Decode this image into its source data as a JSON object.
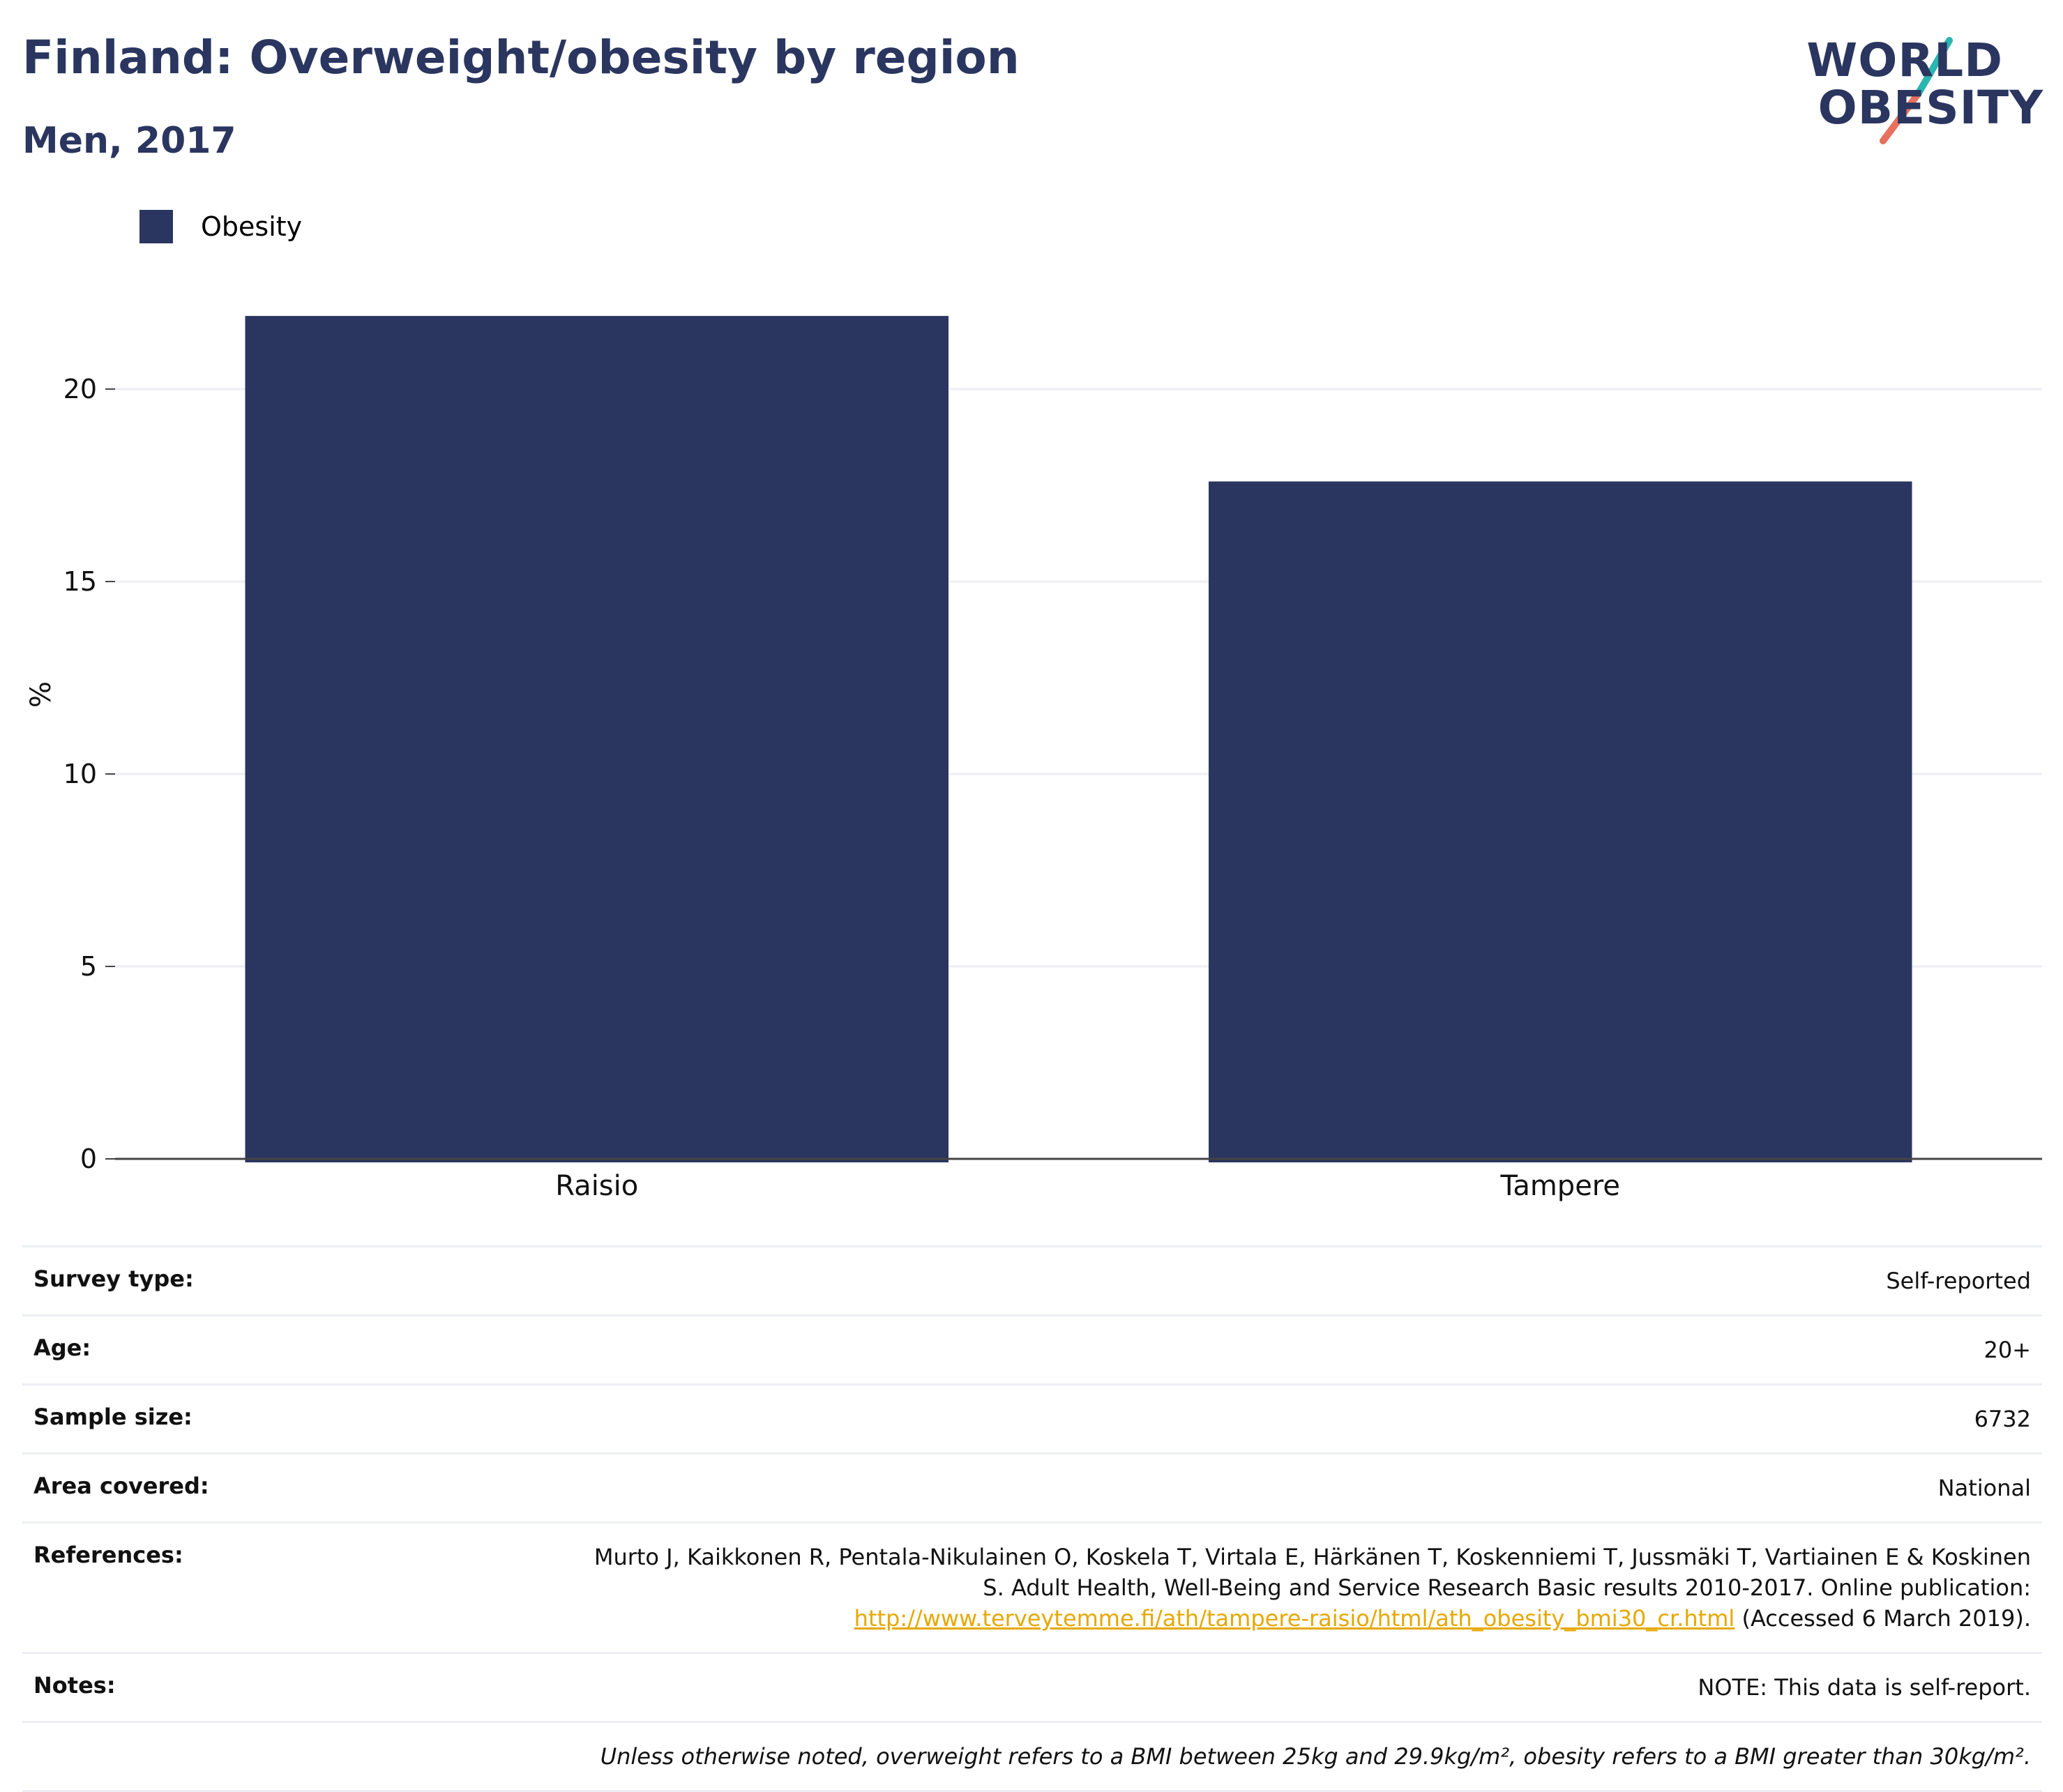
{
  "header": {
    "title": "Finland: Overweight/obesity by region",
    "subtitle": "Men, 2017"
  },
  "logo": {
    "line1": "WORLD",
    "line2": "OBESITY",
    "accent_teal": "#2bb5b0",
    "accent_coral": "#e8705e"
  },
  "colors": {
    "bar": "#2a365f",
    "grid": "#eceef3",
    "axis": "#444444",
    "link": "#e6a800"
  },
  "chart_data": {
    "type": "bar",
    "categories": [
      "Raisio",
      "Tampere"
    ],
    "series": [
      {
        "name": "Obesity",
        "values": [
          21.9,
          17.6
        ]
      }
    ],
    "ylabel": "%",
    "ylim": [
      0,
      22.5
    ],
    "yticks": [
      0,
      5,
      10,
      15,
      20
    ],
    "grid": true,
    "legend_position": "top-left"
  },
  "meta": {
    "survey_type": {
      "label": "Survey type:",
      "value": "Self-reported"
    },
    "age": {
      "label": "Age:",
      "value": "20+"
    },
    "sample_size": {
      "label": "Sample size:",
      "value": "6732"
    },
    "area_covered": {
      "label": "Area covered:",
      "value": "National"
    },
    "references": {
      "label": "References:",
      "text_before": "Murto J, Kaikkonen R, Pentala-Nikulainen O, Koskela T, Virtala E, Härkänen T, Koskenniemi T, Jussmäki T, Vartiainen E & Koskinen S. Adult Health, Well-Being and Service Research Basic results 2010-2017. Online publication: ",
      "link": "http://www.terveytemme.fi/ath/tampere-raisio/html/ath_obesity_bmi30_cr.html",
      "text_after": " (Accessed 6 March 2019)."
    },
    "notes": {
      "label": "Notes:",
      "value": "NOTE: This data is self-report."
    },
    "footnote": "Unless otherwise noted, overweight refers to a BMI between 25kg and 29.9kg/m², obesity refers to a BMI greater than 30kg/m²."
  }
}
